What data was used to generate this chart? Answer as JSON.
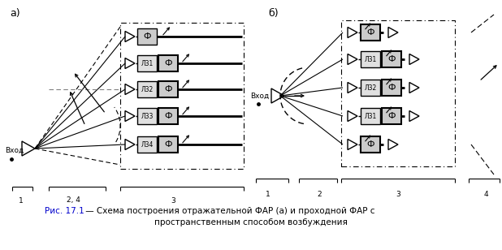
{
  "title_line1": "Рис. 17.1 — Схема построения отражательной ФАР (а) и проходной ФАР с",
  "title_line2": "пространственным способом возбуждения",
  "label_a": "а)",
  "label_b": "б)",
  "background_color": "#ffffff",
  "row_labels_a": [
    "",
    "Л31",
    "Л32",
    "Л33",
    "Л34"
  ],
  "row_labels_b": [
    "",
    "Л31",
    "Л32",
    "Л31",
    ""
  ],
  "caption_color": "#1a1aff"
}
